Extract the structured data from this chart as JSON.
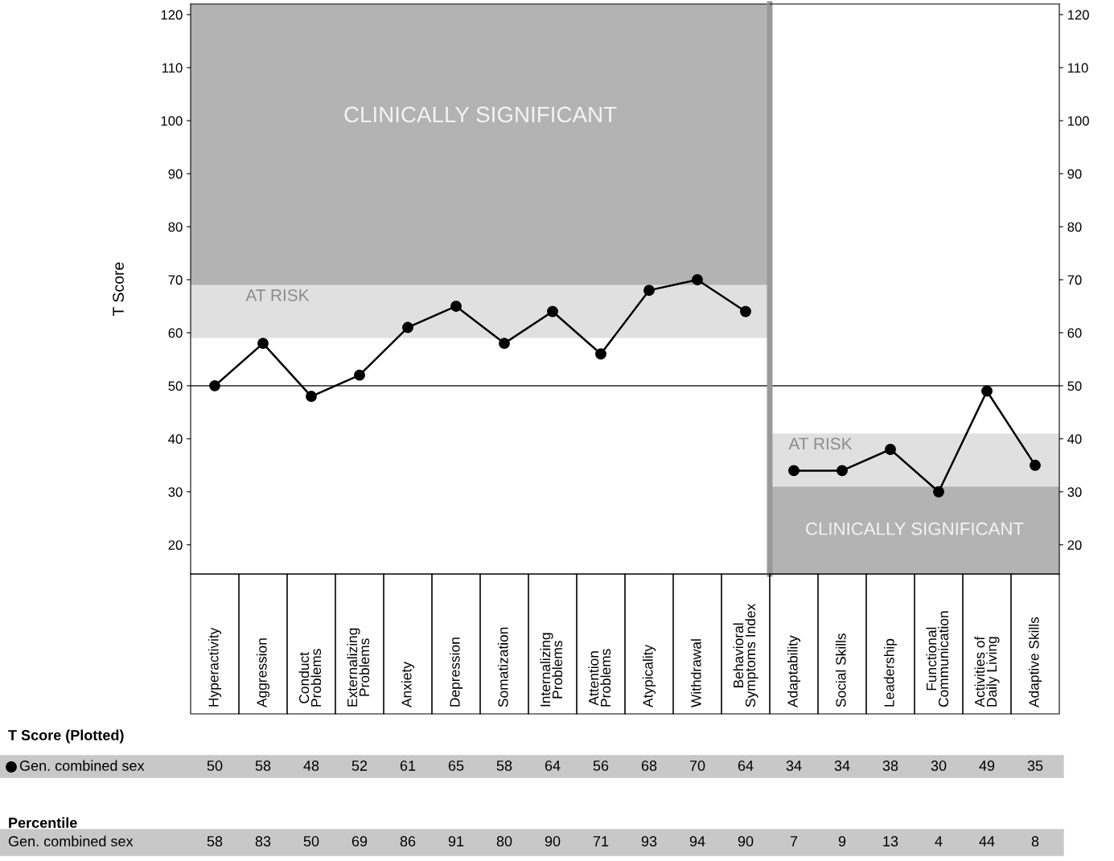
{
  "chart_data": [
    {
      "type": "line",
      "ylabel": "T Score",
      "categories": [
        "Hyperactivity",
        "Aggression",
        "Conduct Problems",
        "Externalizing Problems",
        "Anxiety",
        "Depression",
        "Somatization",
        "Internalizing Problems",
        "Attention Problems",
        "Atypicality",
        "Withdrawal",
        "Behavioral Symptoms Index"
      ],
      "series": [
        {
          "name": "Gen. combined sex",
          "color": "#000000",
          "values": [
            50,
            58,
            48,
            52,
            61,
            65,
            58,
            64,
            56,
            68,
            70,
            64
          ]
        }
      ],
      "ylim": [
        14.5,
        122
      ],
      "yticks": [
        20,
        30,
        40,
        50,
        60,
        70,
        80,
        90,
        100,
        110,
        120
      ],
      "bands": [
        {
          "axis": "y",
          "from": 59,
          "to": 69,
          "label": "AT RISK",
          "color": "#e0e0e0"
        },
        {
          "axis": "y",
          "from": 69,
          "to": 122,
          "label": "CLINICALLY SIGNIFICANT",
          "color": "#b3b3b3"
        }
      ],
      "ref_lines": [
        {
          "axis": "y",
          "value": 50,
          "color": "#000000"
        }
      ],
      "data_labels": true,
      "marker": "circle",
      "line_style": "solid",
      "grid": false,
      "annotations": [
        "T Score (Plotted)",
        "Percentile",
        "Gen. combined sex",
        "58",
        "83",
        "50",
        "69",
        "86",
        "91",
        "80",
        "90",
        "71",
        "93",
        "94",
        "90"
      ]
    },
    {
      "type": "line",
      "categories": [
        "Adaptability",
        "Social Skills",
        "Leadership",
        "Functional Communication",
        "Activities of Daily Living",
        "Adaptive Skills"
      ],
      "series": [
        {
          "color": "#000000",
          "values": [
            34,
            34,
            38,
            30,
            49,
            35
          ]
        }
      ],
      "ylim": [
        14.5,
        122
      ],
      "yticks": [
        20,
        30,
        40,
        50,
        60,
        70,
        80,
        90,
        100,
        110,
        120
      ],
      "bands": [
        {
          "axis": "y",
          "from": 31,
          "to": 41,
          "label": "AT RISK",
          "color": "#e0e0e0"
        },
        {
          "axis": "y",
          "from": 14.5,
          "to": 31,
          "label": "CLINICALLY SIGNIFICANT",
          "color": "#b3b3b3"
        }
      ],
      "ref_lines": [
        {
          "axis": "y",
          "value": 50,
          "color": "#000000"
        }
      ],
      "data_labels": true,
      "marker": "circle",
      "line_style": "solid",
      "grid": false,
      "annotations": [
        "7",
        "9",
        "13",
        "4",
        "44",
        "8"
      ]
    }
  ]
}
